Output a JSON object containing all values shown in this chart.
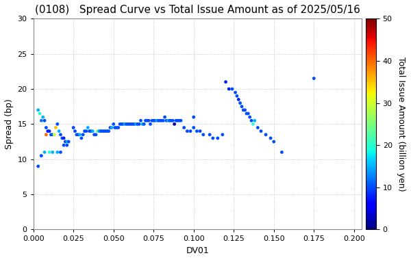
{
  "title": "(0108)   Spread Curve vs Total Issue Amount as of 2025/05/16",
  "xlabel": "DV01",
  "ylabel": "Spread (bp)",
  "colorbar_label": "Total Issue Amount (billion yen)",
  "xlim": [
    0.0,
    0.205
  ],
  "ylim": [
    0,
    30
  ],
  "xticks": [
    0.0,
    0.025,
    0.05,
    0.075,
    0.1,
    0.125,
    0.15,
    0.175,
    0.2
  ],
  "yticks": [
    0,
    5,
    10,
    15,
    20,
    25,
    30
  ],
  "clim": [
    0,
    50
  ],
  "cticks": [
    0,
    10,
    20,
    30,
    40,
    50
  ],
  "bg_color": "#ffffff",
  "grid_color": "#bbbbbb",
  "title_fontsize": 11,
  "label_fontsize": 9,
  "tick_fontsize": 8,
  "scatter_x": [
    0.003,
    0.004,
    0.005,
    0.006,
    0.007,
    0.008,
    0.009,
    0.01,
    0.011,
    0.012,
    0.013,
    0.014,
    0.015,
    0.016,
    0.017,
    0.018,
    0.019,
    0.02,
    0.021,
    0.022,
    0.003,
    0.005,
    0.007,
    0.008,
    0.01,
    0.012,
    0.015,
    0.017,
    0.019,
    0.021,
    0.025,
    0.026,
    0.027,
    0.028,
    0.029,
    0.03,
    0.031,
    0.032,
    0.033,
    0.034,
    0.035,
    0.036,
    0.037,
    0.038,
    0.039,
    0.04,
    0.041,
    0.042,
    0.043,
    0.044,
    0.045,
    0.046,
    0.047,
    0.048,
    0.049,
    0.05,
    0.051,
    0.052,
    0.053,
    0.054,
    0.055,
    0.056,
    0.057,
    0.058,
    0.059,
    0.06,
    0.061,
    0.062,
    0.063,
    0.064,
    0.065,
    0.066,
    0.067,
    0.068,
    0.069,
    0.07,
    0.071,
    0.072,
    0.073,
    0.074,
    0.075,
    0.076,
    0.077,
    0.078,
    0.079,
    0.08,
    0.081,
    0.082,
    0.083,
    0.084,
    0.085,
    0.086,
    0.087,
    0.088,
    0.089,
    0.09,
    0.091,
    0.092,
    0.094,
    0.096,
    0.098,
    0.1,
    0.1,
    0.102,
    0.104,
    0.106,
    0.11,
    0.112,
    0.115,
    0.118,
    0.12,
    0.122,
    0.124,
    0.126,
    0.127,
    0.128,
    0.129,
    0.13,
    0.131,
    0.132,
    0.133,
    0.134,
    0.135,
    0.136,
    0.137,
    0.138,
    0.14,
    0.142,
    0.145,
    0.148,
    0.15,
    0.155,
    0.175
  ],
  "scatter_y": [
    17.0,
    16.5,
    15.5,
    16.0,
    15.5,
    14.5,
    14.0,
    14.0,
    13.5,
    13.5,
    13.5,
    14.5,
    15.0,
    14.0,
    13.5,
    13.0,
    13.0,
    12.5,
    12.5,
    12.5,
    9.0,
    10.5,
    11.0,
    13.5,
    11.0,
    11.0,
    11.0,
    11.0,
    12.0,
    12.0,
    14.5,
    14.0,
    13.5,
    13.5,
    13.5,
    13.0,
    13.5,
    14.0,
    14.0,
    14.5,
    14.0,
    14.0,
    14.0,
    13.5,
    13.5,
    14.0,
    14.0,
    14.0,
    14.0,
    14.0,
    14.0,
    14.0,
    14.0,
    14.5,
    14.5,
    15.0,
    14.5,
    14.5,
    14.5,
    15.0,
    15.0,
    15.0,
    15.0,
    15.0,
    15.0,
    15.0,
    15.0,
    15.0,
    15.0,
    15.0,
    15.0,
    15.0,
    15.5,
    15.0,
    15.0,
    15.5,
    15.5,
    15.5,
    15.0,
    15.5,
    15.5,
    15.5,
    15.5,
    15.5,
    15.5,
    15.5,
    15.5,
    16.0,
    15.5,
    15.5,
    15.5,
    15.5,
    15.5,
    15.0,
    15.5,
    15.5,
    15.5,
    15.5,
    14.5,
    14.0,
    14.0,
    16.0,
    14.5,
    14.0,
    14.0,
    13.5,
    13.5,
    13.0,
    13.0,
    13.5,
    21.0,
    20.0,
    20.0,
    19.5,
    19.0,
    18.5,
    18.0,
    17.5,
    17.0,
    17.0,
    16.5,
    16.5,
    16.0,
    15.5,
    15.0,
    15.5,
    14.5,
    14.0,
    13.5,
    13.0,
    12.5,
    11.0,
    21.5
  ],
  "scatter_c": [
    15,
    20,
    12,
    15,
    10,
    10,
    8,
    8,
    10,
    10,
    30,
    35,
    10,
    15,
    10,
    10,
    8,
    8,
    15,
    10,
    10,
    10,
    15,
    40,
    20,
    15,
    15,
    10,
    10,
    10,
    10,
    10,
    10,
    10,
    15,
    10,
    10,
    10,
    10,
    15,
    10,
    10,
    15,
    10,
    10,
    25,
    15,
    10,
    10,
    10,
    10,
    10,
    10,
    10,
    15,
    10,
    10,
    10,
    10,
    10,
    10,
    10,
    15,
    10,
    10,
    10,
    10,
    10,
    10,
    15,
    10,
    10,
    10,
    15,
    10,
    10,
    10,
    10,
    10,
    10,
    10,
    10,
    15,
    10,
    10,
    10,
    10,
    10,
    10,
    15,
    10,
    10,
    10,
    2,
    10,
    10,
    10,
    10,
    10,
    10,
    10,
    10,
    10,
    10,
    10,
    10,
    10,
    10,
    10,
    10,
    8,
    8,
    10,
    10,
    10,
    8,
    10,
    10,
    10,
    10,
    10,
    10,
    10,
    10,
    20,
    15,
    10,
    10,
    10,
    10,
    10,
    10,
    10
  ]
}
